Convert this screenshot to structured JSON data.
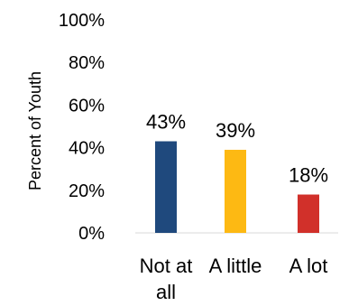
{
  "chart_data": {
    "type": "bar",
    "categories": [
      {
        "line1": "Not at",
        "line2": "all"
      },
      {
        "line1": "A little",
        "line2": ""
      },
      {
        "line1": "A lot",
        "line2": ""
      }
    ],
    "values": [
      43,
      39,
      18
    ],
    "data_labels": [
      "43%",
      "39%",
      "18%"
    ],
    "colors": [
      "#1f497d",
      "#fdb913",
      "#d1302a"
    ],
    "ylabel": "Percent of Youth",
    "yticks": [
      "0%",
      "20%",
      "40%",
      "60%",
      "80%",
      "100%"
    ],
    "ylim": [
      0,
      100
    ],
    "grid": false,
    "legend": "none"
  }
}
